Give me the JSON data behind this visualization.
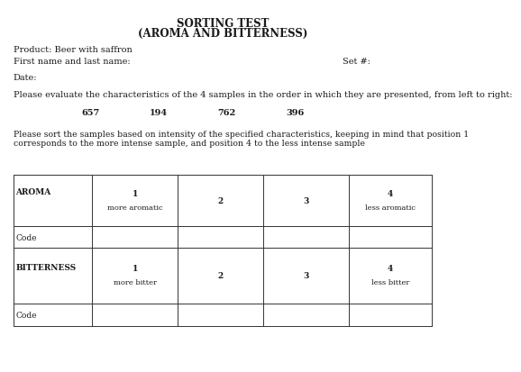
{
  "title1": "SORTING TEST",
  "title2": "(AROMA AND BITTERNESS)",
  "product_label": "Product: Beer with saffron",
  "name_label": "First name and last name:",
  "set_label": "Set #:",
  "date_label": "Date:",
  "instruction1": "Please evaluate the characteristics of the 4 samples in the order in which they are presented, from left to right:",
  "sample_codes": [
    "657",
    "194",
    "762",
    "396"
  ],
  "instruction2": "Please sort the samples based on intensity of the specified characteristics, keeping in mind that position 1\ncorresponds to the more intense sample, and position 4 to the less intense sample",
  "row1_label": "AROMA",
  "row1_col1": "1",
  "row1_col1_sub": "more aromatic",
  "row1_col2": "2",
  "row1_col3": "3",
  "row1_col4": "4",
  "row1_col4_sub": "less aromatic",
  "row2_label": "Code",
  "row3_label": "BITTERNESS",
  "row3_col1": "1",
  "row3_col1_sub": "more bitter",
  "row3_col2": "2",
  "row3_col3": "3",
  "row3_col4": "4",
  "row3_col4_sub": "less bitter",
  "row4_label": "Code",
  "bg_color": "#ffffff",
  "text_color": "#1a1a1a",
  "table_line_color": "#333333",
  "font_size_title": 8.5,
  "font_size_body": 7.0,
  "font_size_table": 6.5
}
